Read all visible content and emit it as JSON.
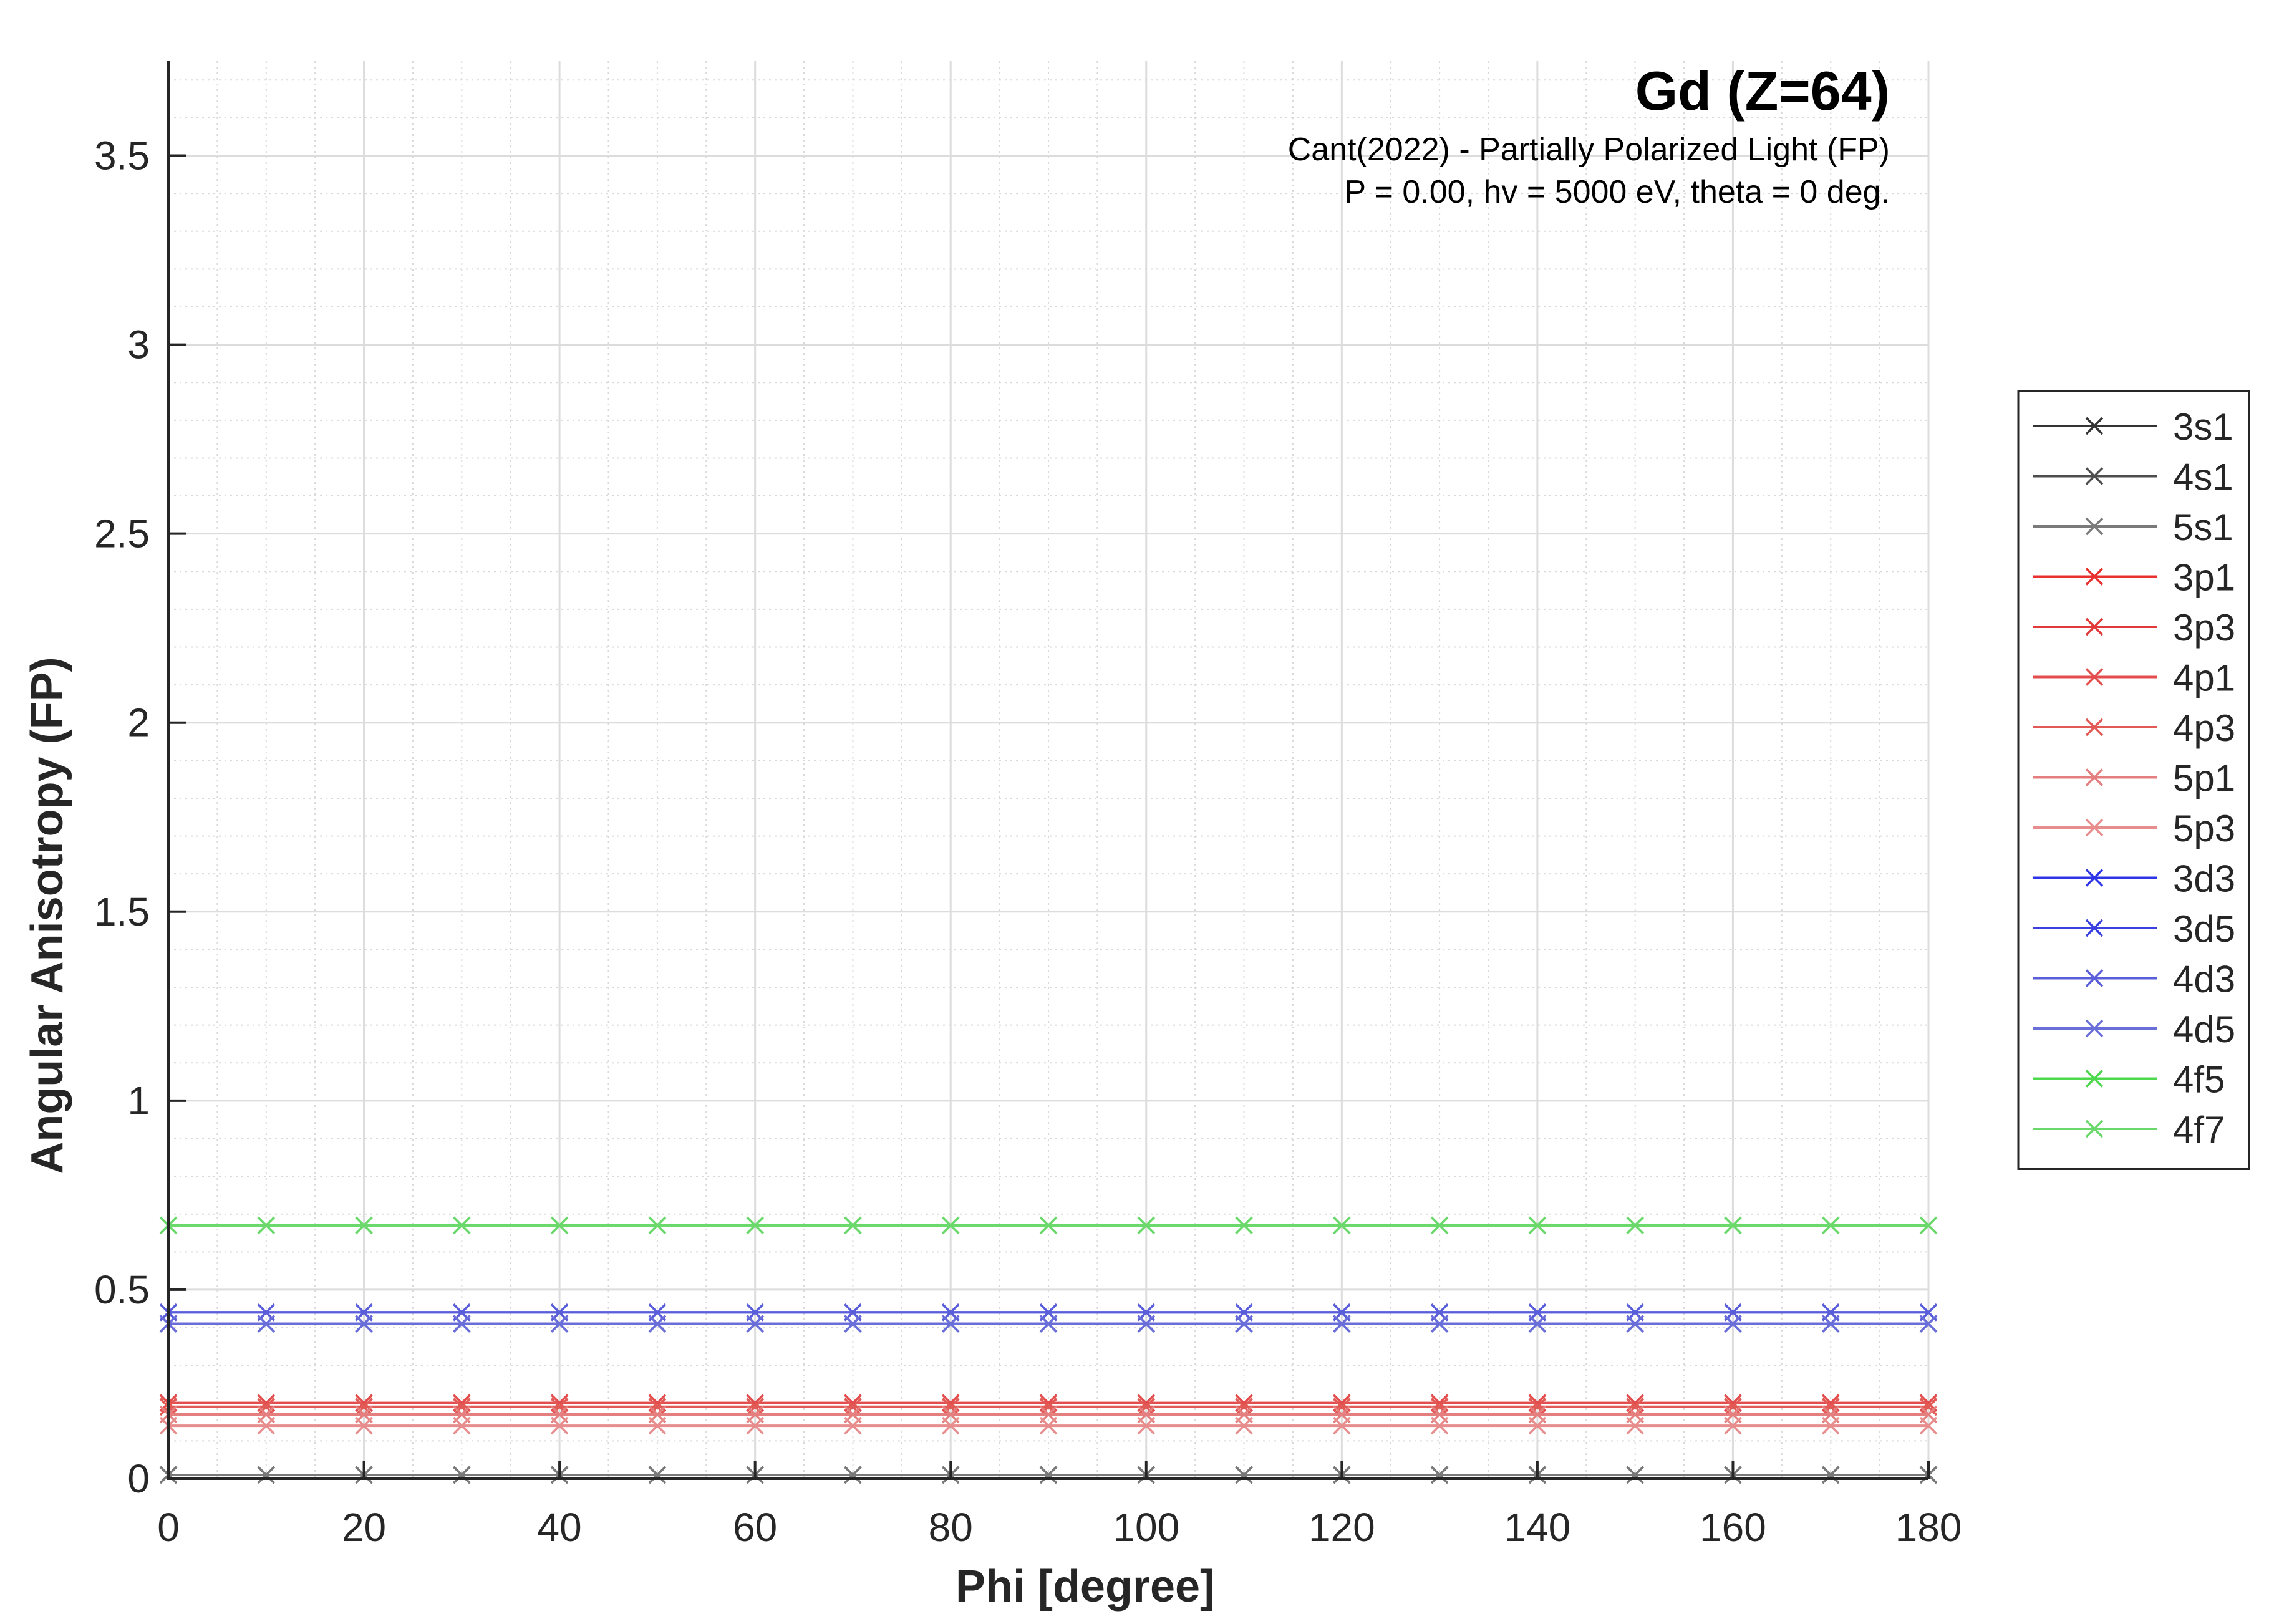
{
  "chart_data": {
    "type": "line",
    "title": "Gd (Z=64)",
    "subtitle_lines": [
      "Cant(2022) - Partially Polarized Light (FP)",
      "P = 0.00, hv = 5000 eV, theta = 0 deg."
    ],
    "xlabel": "Phi [degree]",
    "ylabel": "Angular Anisotropy (FP)",
    "xlim": [
      0,
      180
    ],
    "ylim": [
      0,
      3.75
    ],
    "xticks": [
      0,
      20,
      40,
      60,
      80,
      100,
      120,
      140,
      160,
      180
    ],
    "xtick_labels": [
      "0",
      "20",
      "40",
      "60",
      "80",
      "100",
      "120",
      "140",
      "160",
      "180"
    ],
    "yticks": [
      0,
      0.5,
      1,
      1.5,
      2,
      2.5,
      3,
      3.5
    ],
    "ytick_labels": [
      "0",
      "0.5",
      "1",
      "1.5",
      "2",
      "2.5",
      "3",
      "3.5"
    ],
    "grid": true,
    "minor_grid": true,
    "legend_position": "right",
    "marker": "x",
    "x": [
      0,
      10,
      20,
      30,
      40,
      50,
      60,
      70,
      80,
      90,
      100,
      110,
      120,
      130,
      140,
      150,
      160,
      170,
      180
    ],
    "series": [
      {
        "name": "3s1",
        "color": "#333333",
        "value": 0.01
      },
      {
        "name": "4s1",
        "color": "#4d4d4d",
        "value": 0.01
      },
      {
        "name": "5s1",
        "color": "#7a7a7a",
        "value": 0.01
      },
      {
        "name": "3p1",
        "color": "#e8302f",
        "value": 0.2
      },
      {
        "name": "3p3",
        "color": "#e03a3a",
        "value": 0.19
      },
      {
        "name": "4p1",
        "color": "#e34d4d",
        "value": 0.2
      },
      {
        "name": "4p3",
        "color": "#e25a55",
        "value": 0.19
      },
      {
        "name": "5p1",
        "color": "#e57f7f",
        "value": 0.17
      },
      {
        "name": "5p3",
        "color": "#e78d8d",
        "value": 0.14
      },
      {
        "name": "3d3",
        "color": "#2e35e6",
        "value": 0.44
      },
      {
        "name": "3d5",
        "color": "#3a40e0",
        "value": 0.41
      },
      {
        "name": "4d3",
        "color": "#5a5fd9",
        "value": 0.44
      },
      {
        "name": "4d5",
        "color": "#6a6ed8",
        "value": 0.41
      },
      {
        "name": "4f5",
        "color": "#4ed84e",
        "value": 0.67
      },
      {
        "name": "4f7",
        "color": "#6ad86a",
        "value": 0.67
      }
    ]
  }
}
